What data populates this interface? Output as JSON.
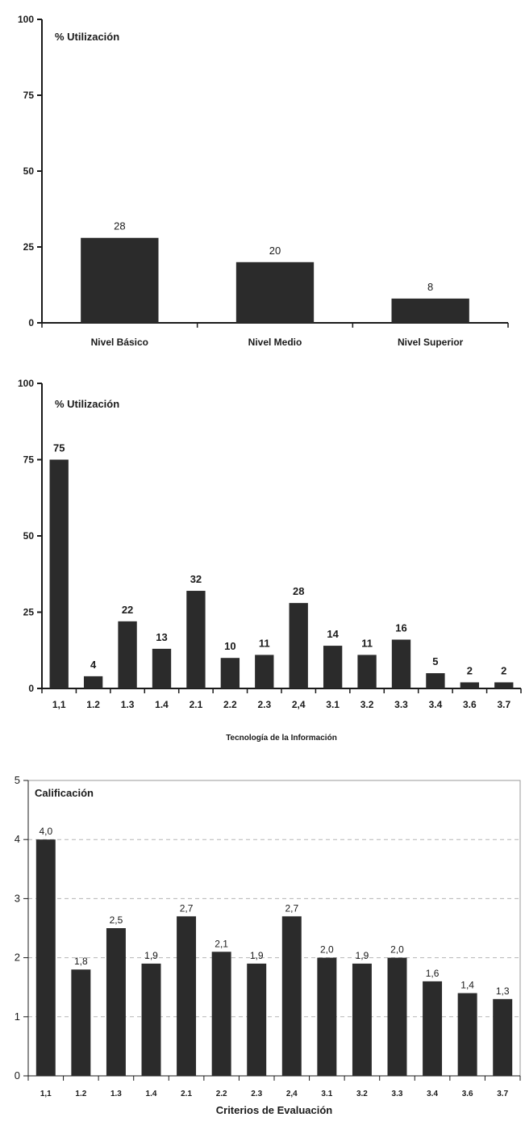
{
  "chart_data": [
    {
      "type": "bar",
      "title": "% Utilización",
      "categories": [
        "Nivel Básico",
        "Nivel Medio",
        "Nivel Superior"
      ],
      "values": [
        28,
        20,
        8
      ],
      "value_labels": [
        "28",
        "20",
        "8"
      ],
      "xlabel": "",
      "ylabel": "",
      "ylim": [
        0,
        100
      ],
      "yticks": [
        0,
        25,
        50,
        75,
        100
      ],
      "ytick_labels": [
        "0",
        "25",
        "50",
        "75",
        "100"
      ],
      "grid": false,
      "bar_color": "#2b2b2b"
    },
    {
      "type": "bar",
      "title": "% Utilización",
      "categories": [
        "1,1",
        "1.2",
        "1.3",
        "1.4",
        "2.1",
        "2.2",
        "2.3",
        "2,4",
        "3.1",
        "3.2",
        "3.3",
        "3.4",
        "3.6",
        "3.7"
      ],
      "values": [
        75,
        4,
        22,
        13,
        32,
        10,
        11,
        28,
        14,
        11,
        16,
        5,
        2,
        2
      ],
      "value_labels": [
        "75",
        "4",
        "22",
        "13",
        "32",
        "10",
        "11",
        "28",
        "14",
        "11",
        "16",
        "5",
        "2",
        "2"
      ],
      "xlabel": "Tecnología de la Información",
      "ylabel": "",
      "ylim": [
        0,
        100
      ],
      "yticks": [
        0,
        25,
        50,
        75,
        100
      ],
      "ytick_labels": [
        "0",
        "25",
        "50",
        "75",
        "100"
      ],
      "grid": false,
      "bar_color": "#2b2b2b"
    },
    {
      "type": "bar",
      "title": "Calificación",
      "categories": [
        "1,1",
        "1.2",
        "1.3",
        "1.4",
        "2.1",
        "2.2",
        "2.3",
        "2,4",
        "3.1",
        "3.2",
        "3.3",
        "3.4",
        "3.6",
        "3.7"
      ],
      "values": [
        4.0,
        1.8,
        2.5,
        1.9,
        2.7,
        2.1,
        1.9,
        2.7,
        2.0,
        1.9,
        2.0,
        1.6,
        1.4,
        1.3
      ],
      "value_labels": [
        "4,0",
        "1,8",
        "2,5",
        "1,9",
        "2,7",
        "2,1",
        "1,9",
        "2,7",
        "2,0",
        "1,9",
        "2,0",
        "1,6",
        "1,4",
        "1,3"
      ],
      "xlabel": "Criterios de Evaluación",
      "ylabel": "",
      "ylim": [
        0,
        5
      ],
      "yticks": [
        0,
        1,
        2,
        3,
        4,
        5
      ],
      "ytick_labels": [
        "0",
        "1",
        "2",
        "3",
        "4",
        "5"
      ],
      "grid": true,
      "bar_color": "#2b2b2b"
    }
  ]
}
